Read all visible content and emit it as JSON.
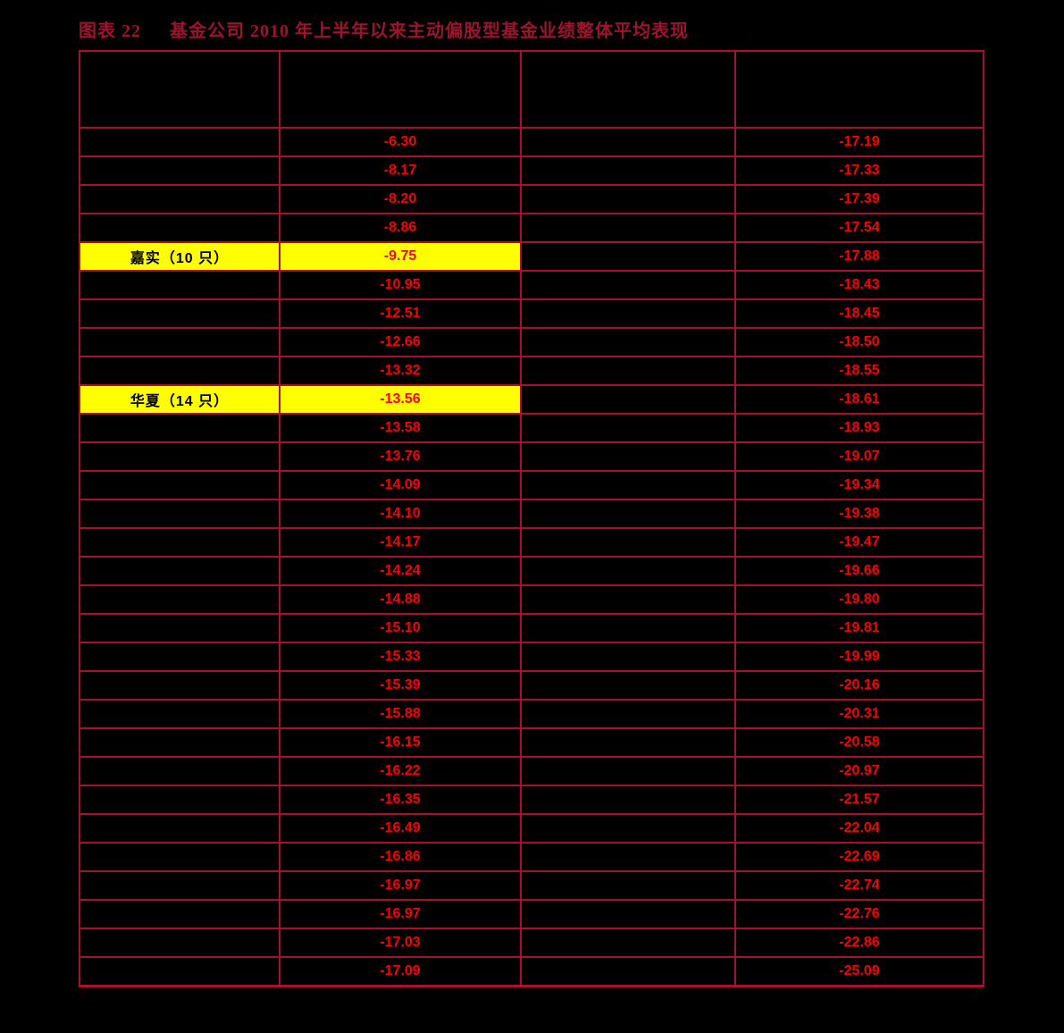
{
  "colors": {
    "background": "#000000",
    "grid": "#aa0f32",
    "title": "#9e132f",
    "value_text": "#fe0000",
    "highlight": "#ffff00",
    "highlight_label_text": "#000000"
  },
  "title": {
    "prefix": "图表 22",
    "text": "基金公司 2010 年上半年以来主动偏股型基金业绩整体平均表现"
  },
  "table": {
    "headers": [
      "",
      "",
      "",
      ""
    ],
    "rows": [
      {
        "company": "",
        "value1": "-6.30",
        "value2": "-17.19",
        "highlight": false
      },
      {
        "company": "",
        "value1": "-8.17",
        "value2": "-17.33",
        "highlight": false
      },
      {
        "company": "",
        "value1": "-8.20",
        "value2": "-17.39",
        "highlight": false
      },
      {
        "company": "",
        "value1": "-8.86",
        "value2": "-17.54",
        "highlight": false
      },
      {
        "company": "嘉实（10 只）",
        "value1": "-9.75",
        "value2": "-17.88",
        "highlight": true
      },
      {
        "company": "",
        "value1": "-10.95",
        "value2": "-18.43",
        "highlight": false
      },
      {
        "company": "",
        "value1": "-12.51",
        "value2": "-18.45",
        "highlight": false
      },
      {
        "company": "",
        "value1": "-12.66",
        "value2": "-18.50",
        "highlight": false
      },
      {
        "company": "",
        "value1": "-13.32",
        "value2": "-18.55",
        "highlight": false
      },
      {
        "company": "华夏（14 只）",
        "value1": "-13.56",
        "value2": "-18.61",
        "highlight": true
      },
      {
        "company": "",
        "value1": "-13.58",
        "value2": "-18.93",
        "highlight": false
      },
      {
        "company": "",
        "value1": "-13.76",
        "value2": "-19.07",
        "highlight": false
      },
      {
        "company": "",
        "value1": "-14.09",
        "value2": "-19.34",
        "highlight": false
      },
      {
        "company": "",
        "value1": "-14.10",
        "value2": "-19.38",
        "highlight": false
      },
      {
        "company": "",
        "value1": "-14.17",
        "value2": "-19.47",
        "highlight": false
      },
      {
        "company": "",
        "value1": "-14.24",
        "value2": "-19.66",
        "highlight": false
      },
      {
        "company": "",
        "value1": "-14.88",
        "value2": "-19.80",
        "highlight": false
      },
      {
        "company": "",
        "value1": "-15.10",
        "value2": "-19.81",
        "highlight": false
      },
      {
        "company": "",
        "value1": "-15.33",
        "value2": "-19.99",
        "highlight": false
      },
      {
        "company": "",
        "value1": "-15.39",
        "value2": "-20.16",
        "highlight": false
      },
      {
        "company": "",
        "value1": "-15.88",
        "value2": "-20.31",
        "highlight": false
      },
      {
        "company": "",
        "value1": "-16.15",
        "value2": "-20.58",
        "highlight": false
      },
      {
        "company": "",
        "value1": "-16.22",
        "value2": "-20.97",
        "highlight": false
      },
      {
        "company": "",
        "value1": "-16.35",
        "value2": "-21.57",
        "highlight": false
      },
      {
        "company": "",
        "value1": "-16.49",
        "value2": "-22.04",
        "highlight": false
      },
      {
        "company": "",
        "value1": "-16.86",
        "value2": "-22.69",
        "highlight": false
      },
      {
        "company": "",
        "value1": "-16.97",
        "value2": "-22.74",
        "highlight": false
      },
      {
        "company": "",
        "value1": "-16.97",
        "value2": "-22.76",
        "highlight": false
      },
      {
        "company": "",
        "value1": "-17.03",
        "value2": "-22.86",
        "highlight": false
      },
      {
        "company": "",
        "value1": "-17.09",
        "value2": "-25.09",
        "highlight": false
      }
    ]
  },
  "chart_data": {
    "type": "table",
    "title": "图表 22 基金公司 2010 年上半年以来主动偏股型基金业绩整体平均表现",
    "columns": [
      "",
      "",
      "",
      ""
    ],
    "column2_values": [
      -6.3,
      -8.17,
      -8.2,
      -8.86,
      -9.75,
      -10.95,
      -12.51,
      -12.66,
      -13.32,
      -13.56,
      -13.58,
      -13.76,
      -14.09,
      -14.1,
      -14.17,
      -14.24,
      -14.88,
      -15.1,
      -15.33,
      -15.39,
      -15.88,
      -16.15,
      -16.22,
      -16.35,
      -16.49,
      -16.86,
      -16.97,
      -16.97,
      -17.03,
      -17.09
    ],
    "column4_values": [
      -17.19,
      -17.33,
      -17.39,
      -17.54,
      -17.88,
      -18.43,
      -18.45,
      -18.5,
      -18.55,
      -18.61,
      -18.93,
      -19.07,
      -19.34,
      -19.38,
      -19.47,
      -19.66,
      -19.8,
      -19.81,
      -19.99,
      -20.16,
      -20.31,
      -20.58,
      -20.97,
      -21.57,
      -22.04,
      -22.69,
      -22.74,
      -22.76,
      -22.86,
      -25.09
    ],
    "highlighted_rows": [
      {
        "index": 4,
        "label": "嘉实（10 只）",
        "value": -9.75
      },
      {
        "index": 9,
        "label": "华夏（14 只）",
        "value": -13.56
      }
    ],
    "layout": {
      "grid": true,
      "legend": false
    }
  }
}
